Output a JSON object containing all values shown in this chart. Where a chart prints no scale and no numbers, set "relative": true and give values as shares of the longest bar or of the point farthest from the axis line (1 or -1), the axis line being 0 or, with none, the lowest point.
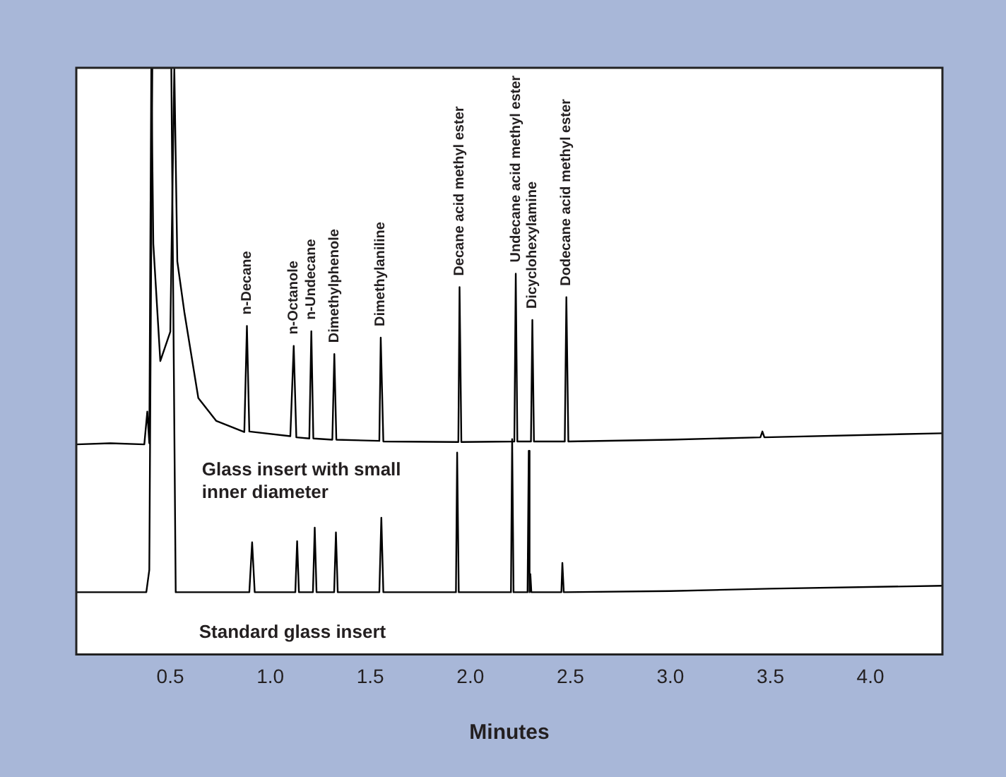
{
  "chart_data": {
    "type": "line",
    "relative": true,
    "xlabel": "Minutes",
    "xlim": [
      0.03,
      4.36
    ],
    "xticks": [
      {
        "value": 0.5,
        "label": "0.5"
      },
      {
        "value": 1,
        "label": "1.0"
      },
      {
        "value": 1.5,
        "label": "1.5"
      },
      {
        "value": 2,
        "label": "2.0"
      },
      {
        "value": 2.5,
        "label": "2.5"
      },
      {
        "value": 3,
        "label": "3.0"
      },
      {
        "value": 3.5,
        "label": "3.5"
      },
      {
        "value": 4,
        "label": "4.0"
      }
    ],
    "legend": false,
    "series": [
      {
        "name": "Glass insert with small inner diameter",
        "color": "#000000",
        "x": [
          0.03,
          0.2,
          0.37,
          0.385,
          0.395,
          0.405,
          0.415,
          0.45,
          0.5,
          0.52,
          0.535,
          0.57,
          0.64,
          0.73,
          0.87,
          0.883,
          0.895,
          1.1,
          1.117,
          1.13,
          1.195,
          1.205,
          1.215,
          1.31,
          1.32,
          1.33,
          1.545,
          1.552,
          1.565,
          1.94,
          1.946,
          1.955,
          2.22,
          2.227,
          2.235,
          2.303,
          2.31,
          2.318,
          2.472,
          2.48,
          2.49,
          3.0,
          3.45,
          3.46,
          3.47,
          4.36
        ],
        "values": [
          0.358,
          0.36,
          0.358,
          0.414,
          0.36,
          1,
          0.7,
          0.5,
          0.55,
          1,
          0.67,
          0.584,
          0.437,
          0.398,
          0.379,
          0.56,
          0.38,
          0.372,
          0.526,
          0.37,
          0.368,
          0.551,
          0.368,
          0.366,
          0.512,
          0.366,
          0.364,
          0.54,
          0.363,
          0.362,
          0.626,
          0.362,
          0.363,
          0.649,
          0.363,
          0.363,
          0.57,
          0.363,
          0.363,
          0.609,
          0.363,
          0.366,
          0.37,
          0.38,
          0.37,
          0.377
        ]
      },
      {
        "name": "Standard glass insert",
        "color": "#000000",
        "x": [
          0.03,
          0.38,
          0.395,
          0.41,
          0.505,
          0.527,
          0.895,
          0.909,
          0.922,
          1.125,
          1.134,
          1.143,
          1.213,
          1.222,
          1.231,
          1.319,
          1.328,
          1.337,
          1.545,
          1.555,
          1.565,
          1.928,
          1.934,
          1.942,
          2.203,
          2.209,
          2.216,
          2.286,
          2.292,
          2.296,
          2.3,
          2.305,
          2.455,
          2.46,
          2.467,
          3.0,
          3.5,
          4.36
        ],
        "values": [
          0.106,
          0.106,
          0.144,
          1,
          1,
          0.106,
          0.106,
          0.191,
          0.106,
          0.106,
          0.193,
          0.106,
          0.106,
          0.216,
          0.106,
          0.106,
          0.208,
          0.106,
          0.106,
          0.233,
          0.106,
          0.106,
          0.344,
          0.106,
          0.106,
          0.367,
          0.106,
          0.106,
          0.347,
          0.106,
          0.137,
          0.106,
          0.106,
          0.156,
          0.106,
          0.108,
          0.112,
          0.117
        ]
      }
    ],
    "annotations": [
      {
        "text": "n-Decane",
        "x": 0.883,
        "y": 0.56
      },
      {
        "text": "n-Octanole",
        "x": 1.117,
        "y": 0.526
      },
      {
        "text": "n-Undecane",
        "x": 1.205,
        "y": 0.551
      },
      {
        "text": "Dimethylphenole",
        "x": 1.32,
        "y": 0.512
      },
      {
        "text": "Dimethylaniline",
        "x": 1.552,
        "y": 0.54
      },
      {
        "text": "Decane acid methyl ester",
        "x": 1.946,
        "y": 0.626
      },
      {
        "text": "Undecane acid methyl ester",
        "x": 2.227,
        "y": 0.649
      },
      {
        "text": "Dicyclohexylamine",
        "x": 2.31,
        "y": 0.57
      },
      {
        "text": "Dodecane acid methyl ester",
        "x": 2.48,
        "y": 0.609
      }
    ]
  }
}
